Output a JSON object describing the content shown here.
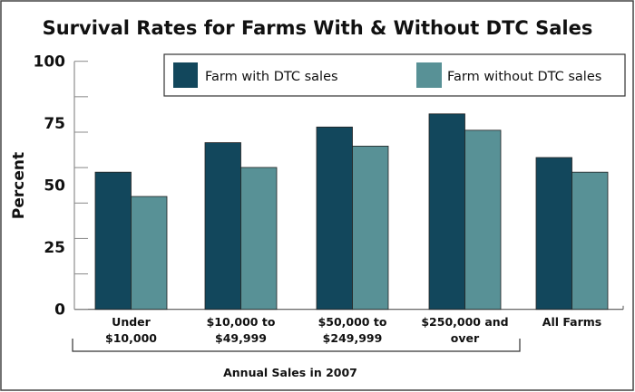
{
  "chart_data": {
    "type": "bar",
    "title": "Survival Rates for Farms With & Without DTC Sales",
    "xlabel": "Annual Sales in 2007",
    "ylabel": "Percent",
    "ylim": [
      0,
      100
    ],
    "yticks": [
      "0",
      "25",
      "50",
      "75",
      "100"
    ],
    "categories": [
      [
        "Under",
        "$10,000"
      ],
      [
        "$10,000 to",
        "$49,999"
      ],
      [
        "$50,000 to",
        "$249,999"
      ],
      [
        "$250,000 and",
        "over"
      ],
      [
        "All Farms",
        ""
      ]
    ],
    "series": [
      {
        "name": "Farm with DTC sales",
        "color": "#12475c",
        "values": [
          55.3,
          67.2,
          73.5,
          78.8,
          61.2
        ]
      },
      {
        "name": "Farm without DTC sales",
        "color": "#589196",
        "values": [
          45.5,
          57.2,
          65.8,
          72.2,
          55.3
        ]
      }
    ],
    "legend": "top-right",
    "grid": false
  }
}
